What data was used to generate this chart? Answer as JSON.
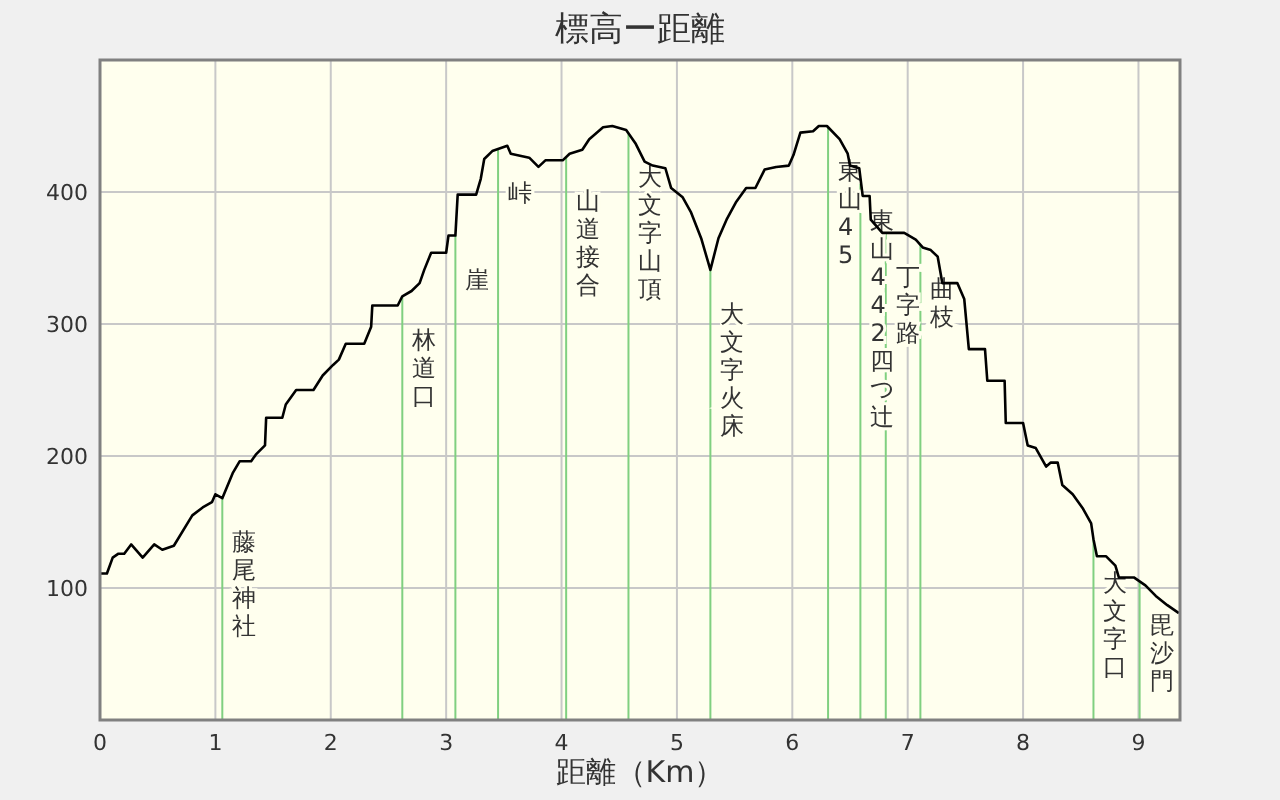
{
  "chart_data": {
    "type": "line",
    "title": "標高ー距離",
    "xlabel": "距離（Km）",
    "xlim": [
      0,
      9.36
    ],
    "ylim": [
      0,
      500
    ],
    "xticks": [
      0,
      1,
      2,
      3,
      4,
      5,
      6,
      7,
      8,
      9
    ],
    "yticks": [
      100,
      200,
      300,
      400
    ],
    "grid": true,
    "marker": "none",
    "line_style": "solid",
    "series": [
      {
        "color": "#000000",
        "x": [
          0,
          0.06,
          0.11,
          0.16,
          0.21,
          0.27,
          0.37,
          0.47,
          0.54,
          0.64,
          0.8,
          0.89,
          0.97,
          1.0,
          1.06,
          1.15,
          1.21,
          1.31,
          1.35,
          1.43,
          1.44,
          1.58,
          1.61,
          1.7,
          1.85,
          1.93,
          2.02,
          2.07,
          2.13,
          2.29,
          2.35,
          2.36,
          2.58,
          2.62,
          2.7,
          2.77,
          2.81,
          2.87,
          3.0,
          3.02,
          3.08,
          3.1,
          3.26,
          3.3,
          3.33,
          3.4,
          3.53,
          3.56,
          3.72,
          3.8,
          3.86,
          4.01,
          4.07,
          4.18,
          4.24,
          4.36,
          4.44,
          4.56,
          4.64,
          4.72,
          4.79,
          4.9,
          4.95,
          5.05,
          5.12,
          5.21,
          5.29,
          5.36,
          5.43,
          5.51,
          5.6,
          5.68,
          5.76,
          5.86,
          5.97,
          6.01,
          6.07,
          6.18,
          6.23,
          6.3,
          6.41,
          6.48,
          6.5,
          6.58,
          6.61,
          6.67,
          6.68,
          6.78,
          6.86,
          6.97,
          7.07,
          7.13,
          7.2,
          7.26,
          7.3,
          7.43,
          7.49,
          7.53,
          7.67,
          7.69,
          7.84,
          7.85,
          8.0,
          8.04,
          8.11,
          8.2,
          8.24,
          8.3,
          8.34,
          8.43,
          8.52,
          8.59,
          8.61,
          8.64,
          8.72,
          8.8,
          8.83,
          8.96,
          9.06,
          9.15,
          9.25,
          9.35
        ],
        "values": [
          111,
          111,
          123,
          126,
          126,
          133,
          123,
          133,
          129,
          132,
          155,
          161,
          165,
          171,
          168,
          187,
          196,
          196,
          201,
          208,
          229,
          229,
          239,
          250,
          250,
          261,
          269,
          273,
          285,
          285,
          298,
          314,
          314,
          321,
          325,
          331,
          341,
          354,
          354,
          367,
          367,
          398,
          398,
          410,
          425,
          431,
          435,
          429,
          426,
          419,
          424,
          424,
          429,
          432,
          440,
          449,
          450,
          447,
          437,
          423,
          420,
          418,
          403,
          396,
          385,
          365,
          341,
          365,
          379,
          392,
          403,
          403,
          417,
          419,
          420,
          428,
          445,
          446,
          450,
          450,
          440,
          429,
          420,
          418,
          397,
          397,
          379,
          369,
          369,
          369,
          364,
          358,
          356,
          351,
          331,
          331,
          319,
          281,
          281,
          257,
          257,
          225,
          225,
          208,
          206,
          192,
          195,
          195,
          178,
          171,
          160,
          149,
          137,
          124,
          124,
          117,
          108,
          108,
          102,
          94,
          87,
          81
        ]
      }
    ],
    "ref_lines": [
      {
        "axis": "x",
        "value": 1.06,
        "label": "藤尾神社",
        "color": "#80d080"
      },
      {
        "axis": "x",
        "value": 2.62,
        "label": "林道口",
        "color": "#80d080"
      },
      {
        "axis": "x",
        "value": 3.08,
        "label": "崖",
        "color": "#80d080"
      },
      {
        "axis": "x",
        "value": 3.45,
        "label": "峠",
        "color": "#80d080"
      },
      {
        "axis": "x",
        "value": 4.04,
        "label": "山道接合",
        "color": "#80d080"
      },
      {
        "axis": "x",
        "value": 4.58,
        "label": "大文字山頂",
        "color": "#80d080"
      },
      {
        "axis": "x",
        "value": 5.29,
        "label": "大文字火床",
        "color": "#80d080"
      },
      {
        "axis": "x",
        "value": 6.31,
        "label": "東山45",
        "color": "#80d080"
      },
      {
        "axis": "x",
        "value": 6.59,
        "label": "東山442四つ辻",
        "color": "#80d080"
      },
      {
        "axis": "x",
        "value": 6.81,
        "label": "丁字路",
        "color": "#80d080"
      },
      {
        "axis": "x",
        "value": 7.11,
        "label": "曲枝",
        "color": "#80d080"
      },
      {
        "axis": "x",
        "value": 8.61,
        "label": "大文字口",
        "color": "#80d080"
      },
      {
        "axis": "x",
        "value": 9.01,
        "label": "毘沙門",
        "color": "#80d080"
      }
    ]
  }
}
